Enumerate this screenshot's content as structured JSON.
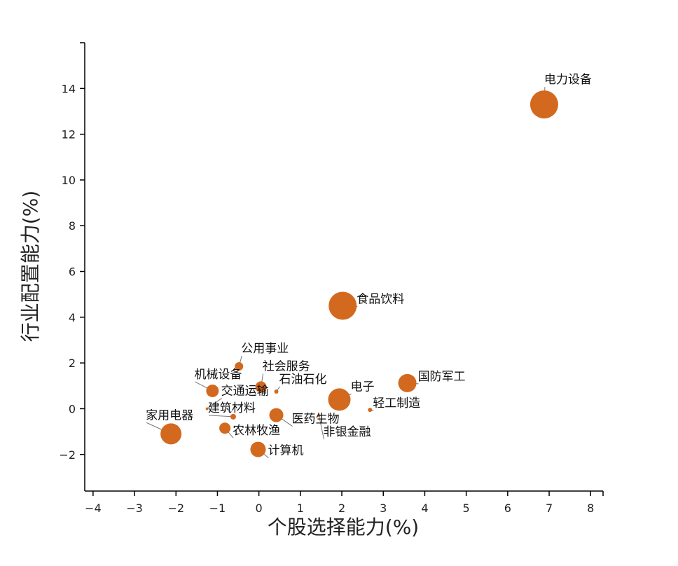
{
  "chart_data": {
    "type": "scatter",
    "title": "",
    "xlabel": "个股选择能力(%)",
    "ylabel": "行业配置能力(%)",
    "xlim": [
      -4.2,
      8.3
    ],
    "ylim": [
      -3.6,
      16
    ],
    "xticks": [
      -4,
      -3,
      -2,
      -1,
      0,
      1,
      2,
      3,
      4,
      5,
      6,
      7,
      8
    ],
    "yticks": [
      -2,
      0,
      2,
      4,
      6,
      8,
      10,
      12,
      14
    ],
    "xtick_labels": [
      "−4",
      "−3",
      "−2",
      "−1",
      "0",
      "1",
      "2",
      "3",
      "4",
      "5",
      "6",
      "7",
      "8"
    ],
    "ytick_labels": [
      "−2",
      "0",
      "2",
      "4",
      "6",
      "8",
      "10",
      "12",
      "14"
    ],
    "point_color": "#D2691E",
    "points": [
      {
        "label": "电力设备",
        "x": 6.88,
        "y": 13.3,
        "size": 20
      },
      {
        "label": "食品饮料",
        "x": 2.02,
        "y": 4.5,
        "size": 20
      },
      {
        "label": "国防军工",
        "x": 3.58,
        "y": 1.12,
        "size": 13
      },
      {
        "label": "电子",
        "x": 1.94,
        "y": 0.4,
        "size": 16
      },
      {
        "label": "轻工制造",
        "x": 2.68,
        "y": -0.05,
        "size": 3
      },
      {
        "label": "公用事业",
        "x": -0.48,
        "y": 1.85,
        "size": 6
      },
      {
        "label": "社会服务",
        "x": 0.05,
        "y": 0.95,
        "size": 8
      },
      {
        "label": "石油石化",
        "x": 0.42,
        "y": 0.75,
        "size": 3
      },
      {
        "label": "机械设备",
        "x": -1.12,
        "y": 0.78,
        "size": 9
      },
      {
        "label": "交通运输",
        "x": -1.25,
        "y": 0.0,
        "size": 2
      },
      {
        "label": "建筑材料",
        "x": -0.62,
        "y": -0.35,
        "size": 4
      },
      {
        "label": "医药生物",
        "x": 0.42,
        "y": -0.28,
        "size": 10
      },
      {
        "label": "非银金融",
        "x": 1.45,
        "y": -0.3,
        "size": 2
      },
      {
        "label": "家用电器",
        "x": -2.12,
        "y": -1.1,
        "size": 15
      },
      {
        "label": "农林牧渔",
        "x": -0.82,
        "y": -0.85,
        "size": 8
      },
      {
        "label": "计算机",
        "x": -0.02,
        "y": -1.78,
        "size": 11
      }
    ]
  }
}
